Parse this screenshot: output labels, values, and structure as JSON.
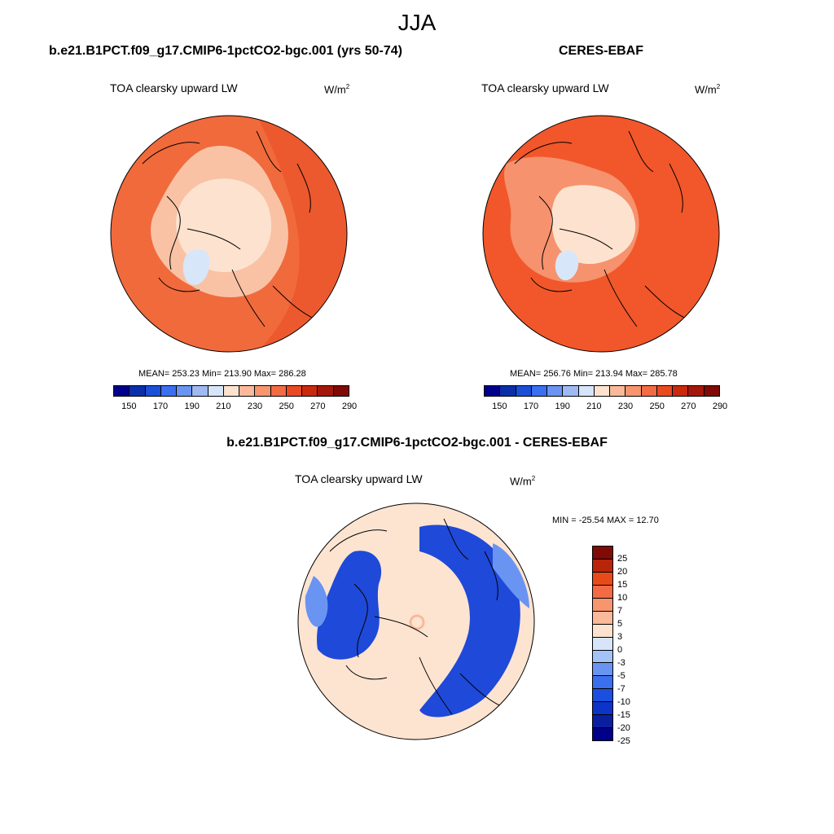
{
  "season": "JJA",
  "units": {
    "base": "W/m",
    "exp": "2"
  },
  "colors": {
    "abs_palette": [
      "#00008b",
      "#0a2fa8",
      "#1a4fd6",
      "#3a6ff0",
      "#6a94f2",
      "#9fbaf3",
      "#d6e5f9",
      "#fde3cf",
      "#f9b99a",
      "#f7956f",
      "#f26b44",
      "#e94a22",
      "#c92a0e",
      "#a3180a",
      "#800a05"
    ],
    "diff_palette": [
      "#00008b",
      "#0a1fa0",
      "#0c34c8",
      "#1a4fe0",
      "#3a6ff0",
      "#6a94f2",
      "#a3c2f5",
      "#d6e5f9",
      "#fde3cf",
      "#f9b99a",
      "#f7956f",
      "#f26b44",
      "#e84a1a",
      "#b8260a",
      "#800a05"
    ],
    "ocean_model": "#f06a3c",
    "ocean_obs": "#f1572a",
    "land_light": "#f9c2a5",
    "ice": "#d8e6fa",
    "diff_bg": "#fde4d1",
    "diff_blue": "#1f49d8",
    "diff_midblue": "#6a94f2"
  },
  "panels": {
    "model": {
      "title": "b.e21.B1PCT.f09_g17.CMIP6-1pctCO2-bgc.001 (yrs 50-74)",
      "variable": "TOA clearsky upward LW",
      "stats": "MEAN= 253.23  Min= 213.90  Max= 286.28",
      "colorbar_ticks": [
        "150",
        "170",
        "190",
        "210",
        "230",
        "250",
        "270",
        "290"
      ]
    },
    "obs": {
      "title": "CERES-EBAF",
      "variable": "TOA clearsky upward LW",
      "stats": "MEAN= 256.76  Min= 213.94  Max= 285.78",
      "colorbar_ticks": [
        "150",
        "170",
        "190",
        "210",
        "230",
        "250",
        "270",
        "290"
      ]
    },
    "diff": {
      "title": "b.e21.B1PCT.f09_g17.CMIP6-1pctCO2-bgc.001 - CERES-EBAF",
      "variable": "TOA clearsky upward LW",
      "stats": "MIN = -25.54 MAX =  12.70",
      "colorbar_ticks": [
        "25",
        "20",
        "15",
        "10",
        "7",
        "5",
        "3",
        "0",
        "-3",
        "-5",
        "-7",
        "-10",
        "-15",
        "-20",
        "-25"
      ]
    }
  }
}
